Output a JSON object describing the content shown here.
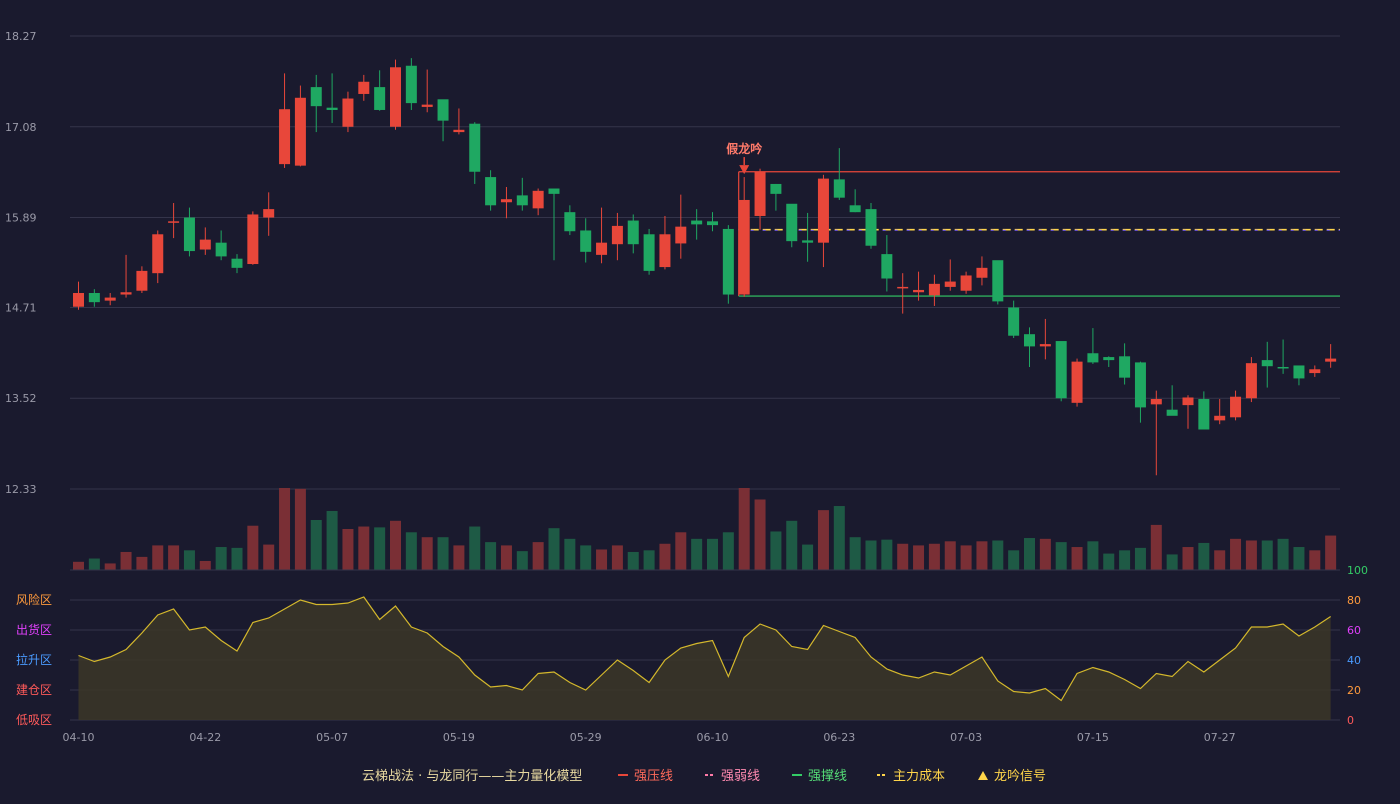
{
  "colors": {
    "background": "#1a1a2e",
    "grid": "#34344a",
    "up": "#e8473a",
    "down": "#1fa862",
    "resistance": "#e8473a",
    "weak": "#ff7aa8",
    "support": "#33cc66",
    "cost": "#ffd54a",
    "oscLine": "#d4b82c",
    "oscFill": "#3a3528"
  },
  "chart_data": {
    "type": "candlestick",
    "price_axis": {
      "ticks": [
        18.27,
        17.08,
        15.89,
        14.71,
        13.52,
        12.33
      ],
      "range": [
        12.33,
        18.27
      ]
    },
    "x_ticks": [
      {
        "index": 0,
        "label": "04-10"
      },
      {
        "index": 8,
        "label": "04-22"
      },
      {
        "index": 16,
        "label": "05-07"
      },
      {
        "index": 24,
        "label": "05-19"
      },
      {
        "index": 32,
        "label": "05-29"
      },
      {
        "index": 40,
        "label": "06-10"
      },
      {
        "index": 48,
        "label": "06-23"
      },
      {
        "index": 56,
        "label": "07-03"
      },
      {
        "index": 64,
        "label": "07-15"
      },
      {
        "index": 72,
        "label": "07-27"
      }
    ],
    "ohlc": [
      [
        14.72,
        14.9,
        15.05,
        14.68
      ],
      [
        14.9,
        14.78,
        14.95,
        14.72
      ],
      [
        14.8,
        14.84,
        14.9,
        14.74
      ],
      [
        14.88,
        14.91,
        15.4,
        14.84
      ],
      [
        14.93,
        15.19,
        15.25,
        14.9
      ],
      [
        15.16,
        15.67,
        15.72,
        15.03
      ],
      [
        15.84,
        15.84,
        16.08,
        15.62
      ],
      [
        15.89,
        15.45,
        16.02,
        15.38
      ],
      [
        15.47,
        15.6,
        15.76,
        15.4
      ],
      [
        15.56,
        15.38,
        15.72,
        15.33
      ],
      [
        15.35,
        15.23,
        15.41,
        15.16
      ],
      [
        15.28,
        15.93,
        15.97,
        15.27
      ],
      [
        15.89,
        16.0,
        16.22,
        15.65
      ],
      [
        16.59,
        17.31,
        17.78,
        16.54
      ],
      [
        16.57,
        17.46,
        17.62,
        16.56
      ],
      [
        17.6,
        17.35,
        17.76,
        17.01
      ],
      [
        17.33,
        17.3,
        17.78,
        17.13
      ],
      [
        17.08,
        17.45,
        17.54,
        17.01
      ],
      [
        17.51,
        17.67,
        17.76,
        17.42
      ],
      [
        17.6,
        17.3,
        17.82,
        17.29
      ],
      [
        17.08,
        17.86,
        17.96,
        17.04
      ],
      [
        17.88,
        17.39,
        17.98,
        17.3
      ],
      [
        17.34,
        17.37,
        17.83,
        17.27
      ],
      [
        17.44,
        17.16,
        17.32,
        16.89
      ],
      [
        17.01,
        17.04,
        17.32,
        16.98
      ],
      [
        17.12,
        16.49,
        17.14,
        16.33
      ],
      [
        16.42,
        16.05,
        16.51,
        15.98
      ],
      [
        16.09,
        16.13,
        16.29,
        15.88
      ],
      [
        16.18,
        16.05,
        16.41,
        15.98
      ],
      [
        16.01,
        16.24,
        16.27,
        15.92
      ],
      [
        16.27,
        16.2,
        16.26,
        15.33
      ],
      [
        15.96,
        15.71,
        16.05,
        15.66
      ],
      [
        15.72,
        15.44,
        15.88,
        15.3
      ],
      [
        15.4,
        15.56,
        16.02,
        15.29
      ],
      [
        15.54,
        15.78,
        15.95,
        15.33
      ],
      [
        15.85,
        15.54,
        15.93,
        15.42
      ],
      [
        15.67,
        15.19,
        15.74,
        15.14
      ],
      [
        15.24,
        15.67,
        15.91,
        15.21
      ],
      [
        15.55,
        15.77,
        16.19,
        15.35
      ],
      [
        15.85,
        15.8,
        16.0,
        15.6
      ],
      [
        15.84,
        15.79,
        15.96,
        15.71
      ],
      [
        15.74,
        14.88,
        15.79,
        14.76
      ],
      [
        14.88,
        16.12,
        16.42,
        14.85
      ],
      [
        15.91,
        16.49,
        16.53,
        15.73
      ],
      [
        16.33,
        16.2,
        16.33,
        15.98
      ],
      [
        16.07,
        15.58,
        16.03,
        15.5
      ],
      [
        15.59,
        15.56,
        15.95,
        15.31
      ],
      [
        15.56,
        16.4,
        16.45,
        15.24
      ],
      [
        16.39,
        16.15,
        16.8,
        16.12
      ],
      [
        16.05,
        15.96,
        16.26,
        15.96
      ],
      [
        16.0,
        15.52,
        16.08,
        15.48
      ],
      [
        15.41,
        15.09,
        15.66,
        14.92
      ],
      [
        14.97,
        14.98,
        15.16,
        14.63
      ],
      [
        14.91,
        14.94,
        15.18,
        14.8
      ],
      [
        14.87,
        15.02,
        15.14,
        14.73
      ],
      [
        14.98,
        15.05,
        15.34,
        14.93
      ],
      [
        14.93,
        15.13,
        15.18,
        14.89
      ],
      [
        15.1,
        15.23,
        15.38,
        15.0
      ],
      [
        15.33,
        14.79,
        15.32,
        14.75
      ],
      [
        14.71,
        14.34,
        14.8,
        14.31
      ],
      [
        14.36,
        14.2,
        14.45,
        13.93
      ],
      [
        14.2,
        14.23,
        14.56,
        14.03
      ],
      [
        14.27,
        13.52,
        14.23,
        13.48
      ],
      [
        13.46,
        14.0,
        14.04,
        13.41
      ],
      [
        14.11,
        13.99,
        14.44,
        13.97
      ],
      [
        14.06,
        14.02,
        14.07,
        13.93
      ],
      [
        14.07,
        13.79,
        14.24,
        13.7
      ],
      [
        13.99,
        13.4,
        14.0,
        13.2
      ],
      [
        13.44,
        13.51,
        13.62,
        12.51
      ],
      [
        13.37,
        13.29,
        13.69,
        13.33
      ],
      [
        13.43,
        13.53,
        13.56,
        13.12
      ],
      [
        13.51,
        13.11,
        13.61,
        13.16
      ],
      [
        13.23,
        13.29,
        13.51,
        13.18
      ],
      [
        13.27,
        13.54,
        13.62,
        13.23
      ],
      [
        13.52,
        13.98,
        14.06,
        13.47
      ],
      [
        14.02,
        13.94,
        14.26,
        13.66
      ],
      [
        13.93,
        13.92,
        14.29,
        13.84
      ],
      [
        13.95,
        13.78,
        13.91,
        13.69
      ],
      [
        13.85,
        13.9,
        13.95,
        13.8
      ],
      [
        14.0,
        14.04,
        14.23,
        13.92
      ]
    ],
    "volume": [
      10,
      14,
      8,
      22,
      16,
      30,
      30,
      24,
      11,
      28,
      27,
      54,
      31,
      100,
      99,
      61,
      72,
      50,
      53,
      52,
      60,
      46,
      40,
      40,
      30,
      53,
      34,
      30,
      23,
      34,
      51,
      38,
      30,
      25,
      30,
      22,
      24,
      32,
      46,
      38,
      38,
      46,
      100,
      86,
      47,
      60,
      31,
      73,
      78,
      40,
      36,
      37,
      32,
      30,
      32,
      35,
      30,
      35,
      36,
      24,
      39,
      38,
      34,
      28,
      35,
      20,
      24,
      27,
      55,
      19,
      28,
      33,
      24,
      38,
      36,
      36,
      38,
      28,
      24,
      42
    ],
    "volume_max": 100,
    "oscillator": {
      "axis_ticks": [
        0,
        20,
        40,
        60,
        80,
        100
      ],
      "range": [
        0,
        100
      ],
      "values": [
        43,
        39,
        42,
        47,
        58,
        70,
        74,
        60,
        62,
        53,
        46,
        65,
        68,
        74,
        80,
        77,
        77,
        78,
        82,
        67,
        76,
        62,
        58,
        49,
        42,
        30,
        22,
        23,
        20,
        31,
        32,
        25,
        20,
        30,
        40,
        33,
        25,
        40,
        48,
        51,
        53,
        29,
        55,
        64,
        60,
        49,
        47,
        63,
        59,
        55,
        42,
        34,
        30,
        28,
        32,
        30,
        36,
        42,
        26,
        19,
        18,
        21,
        13,
        31,
        35,
        32,
        27,
        21,
        31,
        29,
        39,
        32,
        40,
        48,
        62,
        62,
        64,
        56,
        62,
        69
      ],
      "zones": [
        "风险区",
        "出货区",
        "拉升区",
        "建仓区",
        "低吸区"
      ]
    },
    "signal": {
      "index": 42,
      "label": "假龙吟"
    },
    "levels": {
      "resistance": 16.49,
      "weak_resistance": 15.73,
      "cost": 15.73,
      "support": 14.86,
      "start_index": 42
    }
  },
  "legend": {
    "title": "云梯战法 · 与龙同行——主力量化模型",
    "items": [
      {
        "key": "resistance",
        "label": "强压线",
        "mark": "solid"
      },
      {
        "key": "weak",
        "label": "强弱线",
        "mark": "dash"
      },
      {
        "key": "support",
        "label": "强撑线",
        "mark": "solid"
      },
      {
        "key": "cost",
        "label": "主力成本",
        "mark": "dash"
      },
      {
        "key": "cost",
        "label": "龙吟信号",
        "mark": "triangle"
      }
    ]
  }
}
